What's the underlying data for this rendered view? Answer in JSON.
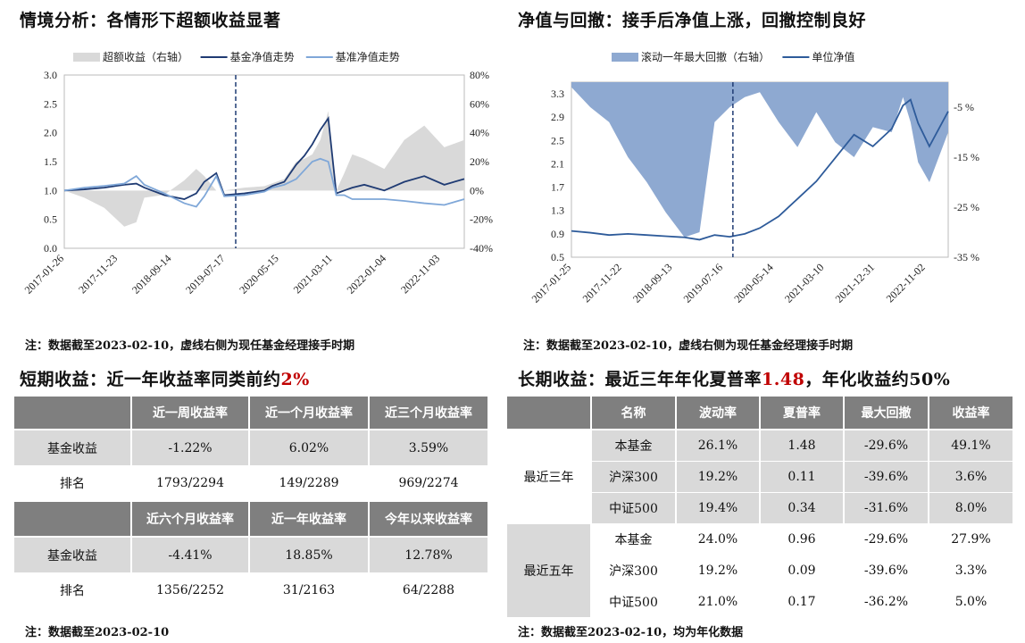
{
  "left_title": "情境分析：各情形下超额收益显著",
  "right_title": "净值与回撤：接手后净值上涨，回撤控制良好",
  "left_note": "注：数据截至2023-02-10，虚线右侧为现任基金经理接手时期",
  "right_note": "注：数据截至2023-02-10，虚线右侧为现任基金经理接手时期",
  "short_title_prefix": "短期收益：近一年收益率同类前约",
  "short_title_highlight": "2%",
  "long_title_prefix": "长期收益：最近三年年化夏普率",
  "long_title_highlight": "1.48",
  "long_title_suffix": "，年化收益约50%",
  "short_note": "注：数据截至2023-02-10",
  "long_note": "注：数据截至2023-02-10，均为年化数据",
  "chart_data": [
    {
      "type": "line",
      "legend": [
        "超额收益（右轴）",
        "基金净值走势",
        "基准净值走势"
      ],
      "x_ticks": [
        "2017-01-26",
        "2017-11-23",
        "2018-09-14",
        "2019-07-17",
        "2020-05-15",
        "2021-03-11",
        "2022-01-04",
        "2022-11-03"
      ],
      "y_left_ticks": [
        "0.0",
        "0.5",
        "1.0",
        "1.5",
        "2.0",
        "2.5",
        "3.0"
      ],
      "y_right_ticks": [
        "-40%",
        "-20%",
        "0%",
        "20%",
        "40%",
        "60%",
        "80%"
      ],
      "ylim_left": [
        0,
        3
      ],
      "ylim_right": [
        -0.4,
        0.8
      ],
      "x": [
        0,
        0.05,
        0.1,
        0.15,
        0.18,
        0.2,
        0.25,
        0.3,
        0.33,
        0.35,
        0.38,
        0.4,
        0.45,
        0.5,
        0.52,
        0.55,
        0.58,
        0.6,
        0.62,
        0.64,
        0.66,
        0.68,
        0.7,
        0.72,
        0.75,
        0.8,
        0.85,
        0.9,
        0.95,
        1.0
      ],
      "series": [
        {
          "name": "基金净值走势",
          "color": "#1f3b73",
          "values": [
            1.0,
            1.02,
            1.05,
            1.1,
            1.12,
            1.05,
            0.92,
            0.85,
            0.95,
            1.15,
            1.3,
            0.92,
            0.95,
            1.0,
            1.08,
            1.15,
            1.45,
            1.6,
            1.8,
            2.05,
            2.25,
            0.95,
            1.0,
            1.05,
            1.1,
            1.0,
            1.15,
            1.25,
            1.1,
            1.2
          ]
        },
        {
          "name": "基准净值走势",
          "color": "#7fa7d8",
          "values": [
            1.0,
            1.05,
            1.08,
            1.12,
            1.25,
            1.1,
            0.95,
            0.78,
            0.72,
            0.9,
            1.25,
            0.9,
            0.92,
            0.98,
            1.05,
            1.1,
            1.2,
            1.35,
            1.5,
            1.55,
            1.5,
            0.92,
            0.92,
            0.85,
            0.85,
            0.85,
            0.82,
            0.78,
            0.75,
            0.85
          ]
        },
        {
          "name": "超额收益（右轴）",
          "color": "#d9d9d9",
          "values": [
            0.0,
            -0.05,
            -0.12,
            -0.25,
            -0.22,
            -0.05,
            -0.03,
            0.07,
            0.15,
            0.1,
            0.0,
            0.0,
            0.02,
            0.03,
            0.05,
            0.08,
            0.2,
            0.22,
            0.25,
            0.35,
            0.55,
            0.0,
            0.12,
            0.25,
            0.22,
            0.15,
            0.35,
            0.45,
            0.3,
            0.35
          ]
        }
      ],
      "marker_x": "2019-07-17"
    },
    {
      "type": "line",
      "legend": [
        "滚动一年最大回撤（右轴）",
        "单位净值"
      ],
      "x_ticks": [
        "2017-01-25",
        "2017-11-22",
        "2018-09-13",
        "2019-07-16",
        "2020-05-14",
        "2021-03-10",
        "2021-12-31",
        "2022-11-02"
      ],
      "y_left_ticks": [
        "0.5",
        "0.9",
        "1.3",
        "1.7",
        "2.1",
        "2.5",
        "2.9",
        "3.3"
      ],
      "y_right_ticks": [
        "-35 %",
        "-25 %",
        "-15 %",
        "-5 %"
      ],
      "ylim_left": [
        0.5,
        3.5
      ],
      "ylim_right": [
        -0.35,
        0.0
      ],
      "x": [
        0,
        0.05,
        0.1,
        0.15,
        0.2,
        0.25,
        0.3,
        0.34,
        0.38,
        0.42,
        0.46,
        0.5,
        0.55,
        0.6,
        0.65,
        0.7,
        0.75,
        0.8,
        0.85,
        0.88,
        0.9,
        0.92,
        0.95,
        1.0
      ],
      "series": [
        {
          "name": "单位净值",
          "color": "#2e5b9a",
          "values": [
            0.95,
            0.92,
            0.88,
            0.9,
            0.88,
            0.86,
            0.84,
            0.8,
            0.88,
            0.85,
            0.9,
            1.0,
            1.2,
            1.5,
            1.8,
            2.2,
            2.6,
            2.4,
            2.7,
            3.1,
            3.2,
            2.8,
            2.4,
            3.0
          ]
        },
        {
          "name": "滚动一年最大回撤（右轴）",
          "color": "#8ea9d1",
          "values": [
            -0.01,
            -0.05,
            -0.08,
            -0.15,
            -0.2,
            -0.26,
            -0.31,
            -0.3,
            -0.08,
            -0.05,
            -0.03,
            -0.02,
            -0.08,
            -0.13,
            -0.06,
            -0.12,
            -0.15,
            -0.09,
            -0.1,
            -0.03,
            -0.08,
            -0.16,
            -0.2,
            -0.1
          ]
        }
      ],
      "marker_x": "2019-07-16"
    }
  ],
  "short_table": {
    "header1": [
      "",
      "近一周收益率",
      "近一个月收益率",
      "近三个月收益率"
    ],
    "row1": [
      "基金收益",
      "-1.22%",
      "6.02%",
      "3.59%"
    ],
    "row2": [
      "排名",
      "1793/2294",
      "149/2289",
      "969/2274"
    ],
    "header2": [
      "",
      "近六个月收益率",
      "近一年收益率",
      "今年以来收益率"
    ],
    "row3": [
      "基金收益",
      "-4.41%",
      "18.85%",
      "12.78%"
    ],
    "row4": [
      "排名",
      "1356/2252",
      "31/2163",
      "64/2288"
    ]
  },
  "long_table": {
    "headers": [
      "",
      "名称",
      "波动率",
      "夏普率",
      "最大回撤",
      "收益率"
    ],
    "group1": "最近三年",
    "group2": "最近五年",
    "rows": [
      [
        "本基金",
        "26.1%",
        "1.48",
        "-29.6%",
        "49.1%"
      ],
      [
        "沪深300",
        "19.2%",
        "0.11",
        "-39.6%",
        "3.6%"
      ],
      [
        "中证500",
        "19.4%",
        "0.34",
        "-31.6%",
        "8.0%"
      ],
      [
        "本基金",
        "24.0%",
        "0.96",
        "-29.6%",
        "27.9%"
      ],
      [
        "沪深300",
        "19.2%",
        "0.09",
        "-39.6%",
        "3.3%"
      ],
      [
        "中证500",
        "21.0%",
        "0.17",
        "-36.2%",
        "5.0%"
      ]
    ]
  }
}
